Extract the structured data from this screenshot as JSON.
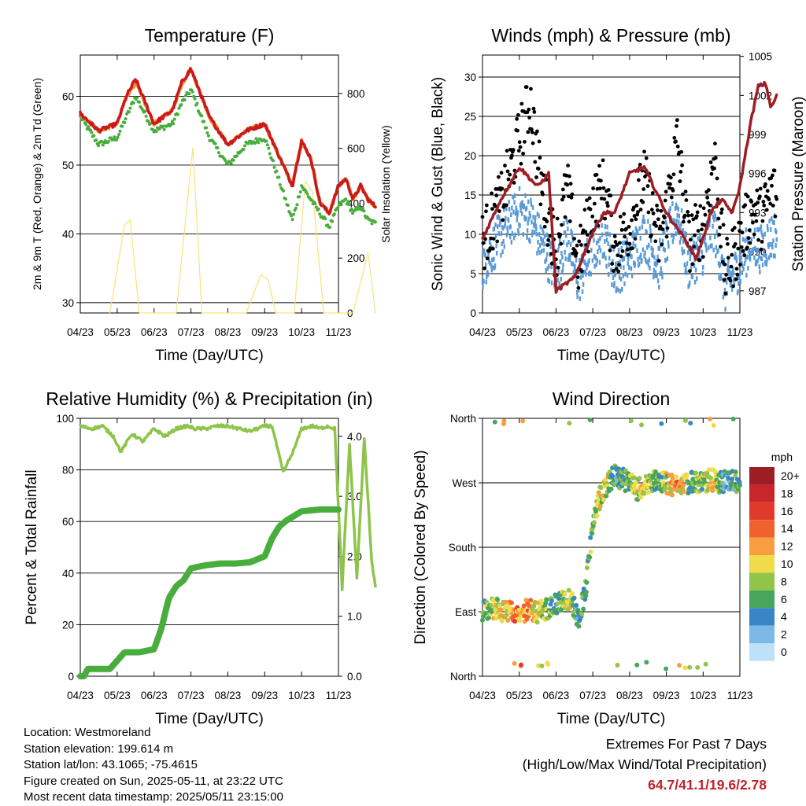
{
  "info": {
    "location": "Location: Westmoreland",
    "elevation": "Station elevation: 199.614 m",
    "latlon": "Station lat/lon: 43.1065; -75.4615",
    "created": "Figure created on Sun, 2025-05-11, at 23:22 UTC",
    "recent": "Most recent data timestamp: 2025/05/11 23:15:00"
  },
  "extremes": {
    "title": "Extremes For Past 7 Days",
    "subtitle": "(High/Low/Max Wind/Total Precipitation)",
    "values": "64.7/41.1/19.6/2.78"
  },
  "colors": {
    "temp2m": "#c9191e",
    "temp9m": "#f78b2e",
    "dewpoint": "#48ad3c",
    "solar": "#f9e27a",
    "wind": "#5a9ad6",
    "gust": "#000000",
    "pressure": "#9c1e24",
    "rh": "#8ec44a",
    "precip": "#48ad3c"
  },
  "chart_data": [
    {
      "type": "line",
      "title": "Temperature (F)",
      "xlabel": "Time (Day/UTC)",
      "ylabel": "2m & 9m T (Red, Orange) & 2m Td (Green)",
      "y2label": "Solar Insolation (Yellow)",
      "x_ticks": [
        "04/23",
        "05/23",
        "06/23",
        "07/23",
        "08/23",
        "09/23",
        "10/23",
        "11/23"
      ],
      "ylim": [
        28.5,
        66
      ],
      "y_ticks": [
        30,
        40,
        50,
        60
      ],
      "y2lim": [
        0,
        940
      ],
      "y2_ticks": [
        0,
        200,
        400,
        600,
        800
      ],
      "grid": true,
      "series": [
        {
          "key": "temp2m",
          "t": [
            0,
            0.5,
            1,
            1.25,
            1.5,
            2,
            2.5,
            2.75,
            3,
            3.5,
            4,
            4.5,
            5,
            5.5,
            5.75,
            6,
            6.25,
            6.5,
            6.75,
            7,
            7.2,
            7.4,
            7.6,
            7.8,
            8
          ],
          "values": [
            57.5,
            55,
            56,
            60,
            62.5,
            56,
            58,
            62,
            64,
            57,
            53,
            55,
            56,
            50,
            47,
            53.5,
            51,
            44.5,
            43,
            47,
            48,
            45,
            47,
            45,
            44
          ]
        },
        {
          "key": "temp9m",
          "t": [
            0,
            0.5,
            1,
            1.25,
            1.5,
            2,
            2.5,
            2.75,
            3,
            3.5,
            4,
            4.5,
            5,
            5.5,
            5.75,
            6,
            6.25,
            6.5,
            6.75,
            7,
            7.2,
            7.4,
            7.6,
            7.8,
            8
          ],
          "values": [
            57.5,
            55,
            56,
            60,
            62,
            56,
            58,
            61.8,
            64,
            57,
            53,
            55,
            56,
            50,
            47,
            53.5,
            51,
            44.5,
            43,
            47,
            48,
            45,
            47,
            45,
            44
          ]
        },
        {
          "key": "dewpoint",
          "t": [
            0,
            0.5,
            1,
            1.25,
            1.5,
            2,
            2.5,
            2.75,
            3,
            3.5,
            4,
            4.5,
            5,
            5.5,
            5.75,
            6,
            6.25,
            6.5,
            6.75,
            7,
            7.2,
            7.4,
            7.6,
            7.8,
            8
          ],
          "values": [
            57,
            53,
            54,
            57,
            60,
            55,
            56,
            59,
            61,
            54,
            50,
            53,
            54,
            46,
            42,
            47,
            45,
            43,
            41,
            44,
            45,
            43,
            44,
            42,
            41.5
          ]
        },
        {
          "key": "solar",
          "t": [
            0.8,
            1.2,
            1.35,
            1.6,
            2.6,
            2.85,
            3.05,
            3.3,
            4.5,
            4.9,
            5.1,
            5.3,
            5.8,
            6.1,
            6.3,
            6.6,
            7.4,
            7.8,
            8
          ],
          "values": [
            0,
            320,
            340,
            0,
            0,
            330,
            600,
            0,
            0,
            140,
            120,
            0,
            0,
            480,
            440,
            0,
            0,
            220,
            0
          ]
        }
      ]
    },
    {
      "type": "scatter",
      "title": "Winds (mph) & Pressure (mb)",
      "xlabel": "Time (Day/UTC)",
      "ylabel": "Sonic Wind & Gust (Blue, Black)",
      "y2label": "Station Pressure (Maroon)",
      "x_ticks": [
        "04/23",
        "05/23",
        "06/23",
        "07/23",
        "08/23",
        "09/23",
        "10/23",
        "11/23"
      ],
      "ylim": [
        0,
        32.8
      ],
      "y_ticks": [
        0,
        5,
        10,
        15,
        20,
        25,
        30
      ],
      "y2lim": [
        985.3,
        1005.1
      ],
      "y2_ticks": [
        987,
        990,
        993,
        996,
        999,
        1002,
        1005
      ],
      "grid": true,
      "series": [
        {
          "key": "wind",
          "t": [
            0,
            0.5,
            1,
            1.3,
            1.6,
            2,
            2.3,
            2.6,
            3,
            3.3,
            3.6,
            4,
            4.4,
            4.8,
            5,
            5.3,
            5.6,
            6,
            6.3,
            6.6,
            7,
            7.3,
            7.6,
            7.9,
            8
          ],
          "values": [
            6,
            10,
            13,
            12,
            9,
            5,
            10,
            4,
            8,
            10,
            5,
            7,
            10,
            6,
            9,
            13,
            6,
            8,
            11,
            3,
            6,
            9,
            8,
            10,
            10
          ]
        },
        {
          "key": "gust",
          "t": [
            0,
            0.5,
            1,
            1.3,
            1.6,
            2,
            2.3,
            2.6,
            3,
            3.3,
            3.6,
            4,
            4.4,
            4.8,
            5,
            5.3,
            5.6,
            6,
            6.3,
            6.6,
            7,
            7.3,
            7.6,
            7.9,
            8
          ],
          "values": [
            9,
            14,
            22,
            27,
            16,
            8,
            16,
            6,
            14,
            16,
            8,
            11,
            17,
            9,
            13,
            22,
            9,
            11,
            20,
            5,
            9,
            13,
            12,
            16,
            14
          ]
        },
        {
          "key": "pressure",
          "t": [
            0,
            0.5,
            1,
            1.5,
            1.8,
            2,
            2.5,
            3,
            3.3,
            3.6,
            4,
            4.4,
            5,
            5.5,
            5.8,
            6,
            6.2,
            6.5,
            6.8,
            7,
            7.3,
            7.5,
            7.7,
            7.85,
            8
          ],
          "values": [
            991,
            994,
            996.5,
            995,
            996,
            987,
            988,
            991.5,
            993,
            993,
            996,
            996.5,
            993,
            991,
            989.5,
            991,
            993,
            994,
            993,
            995,
            1000,
            1002.7,
            1002.9,
            1001,
            1002
          ]
        }
      ]
    },
    {
      "type": "line",
      "title": "Relative Humidity (%) & Precipitation (in)",
      "xlabel": "Time (Day/UTC)",
      "ylabel": "Percent & Total Rainfall",
      "x_ticks": [
        "04/23",
        "05/23",
        "06/23",
        "07/23",
        "08/23",
        "09/23",
        "10/23",
        "11/23"
      ],
      "ylim": [
        0,
        100
      ],
      "y_ticks": [
        0,
        20,
        40,
        60,
        80,
        100
      ],
      "y2lim": [
        0,
        4.3
      ],
      "y2_ticks": [
        "0.0",
        "1.0",
        "2.0",
        "3.0",
        "4.0"
      ],
      "grid": true,
      "series": [
        {
          "key": "rh",
          "t": [
            0,
            0.3,
            0.6,
            0.9,
            1.1,
            1.4,
            1.7,
            2,
            2.3,
            2.6,
            2.9,
            3.1,
            3.4,
            3.7,
            4,
            4.3,
            4.6,
            5,
            5.2,
            5.5,
            5.8,
            6,
            6.3,
            6.5,
            6.7,
            6.9,
            7.1,
            7.3,
            7.5,
            7.7,
            7.9,
            8
          ],
          "values": [
            97,
            96,
            97,
            93,
            87,
            94,
            91,
            96,
            93,
            96,
            97,
            96,
            96,
            97,
            97,
            96,
            95,
            97,
            97,
            79,
            88,
            96,
            97,
            96,
            97,
            96,
            34,
            90,
            38,
            92,
            45,
            35
          ]
        },
        {
          "key": "precip",
          "t": [
            0,
            0.1,
            0.2,
            0.8,
            1.2,
            1.6,
            2,
            2.2,
            2.4,
            2.6,
            2.8,
            3,
            3.4,
            3.8,
            4,
            4.2,
            4.6,
            5,
            5.2,
            5.4,
            5.6,
            6,
            6.5,
            7,
            7.5,
            8
          ],
          "values": [
            0,
            0,
            0.12,
            0.12,
            0.4,
            0.4,
            0.45,
            0.8,
            1.3,
            1.5,
            1.6,
            1.8,
            1.85,
            1.88,
            1.88,
            1.88,
            1.9,
            2.0,
            2.3,
            2.5,
            2.6,
            2.75,
            2.78,
            2.78,
            2.78,
            2.78
          ]
        }
      ]
    },
    {
      "type": "scatter",
      "title": "Wind Direction",
      "xlabel": "Time (Day/UTC)",
      "ylabel": "Direction (Colored By Speed)",
      "x_ticks": [
        "04/23",
        "05/23",
        "06/23",
        "07/23",
        "08/23",
        "09/23",
        "10/23",
        "11/23"
      ],
      "y_ticks": [
        "North",
        "East",
        "South",
        "West",
        "North"
      ],
      "ylim": [
        0,
        360
      ],
      "legend": {
        "title": "mph",
        "labels": [
          "20+",
          "18",
          "16",
          "14",
          "12",
          "10",
          "8",
          "6",
          "4",
          "2",
          "0"
        ],
        "colors": [
          "#9c1e24",
          "#c7262b",
          "#df3a2c",
          "#ef6230",
          "#f99e40",
          "#f0dc4a",
          "#92c44a",
          "#48a55c",
          "#3a85c6",
          "#7cb8e6",
          "#bee0f8"
        ],
        "placement": "right"
      },
      "series": [
        {
          "name": "direction",
          "t": [
            0,
            0.3,
            0.6,
            0.9,
            1.2,
            1.5,
            1.8,
            2,
            2.2,
            2.4,
            2.6,
            2.8,
            3,
            3.2,
            3.4,
            3.6,
            3.8,
            4,
            4.2,
            4.5,
            4.8,
            5,
            5.3,
            5.6,
            6,
            6.2,
            6.4,
            6.7,
            7,
            7.3,
            7.6,
            7.9,
            8
          ],
          "values": [
            90,
            95,
            90,
            88,
            92,
            90,
            95,
            100,
            105,
            110,
            80,
            120,
            210,
            250,
            270,
            280,
            275,
            270,
            260,
            270,
            275,
            270,
            265,
            270,
            270,
            275,
            270,
            275,
            270,
            260,
            270,
            270,
            275
          ]
        }
      ]
    }
  ]
}
